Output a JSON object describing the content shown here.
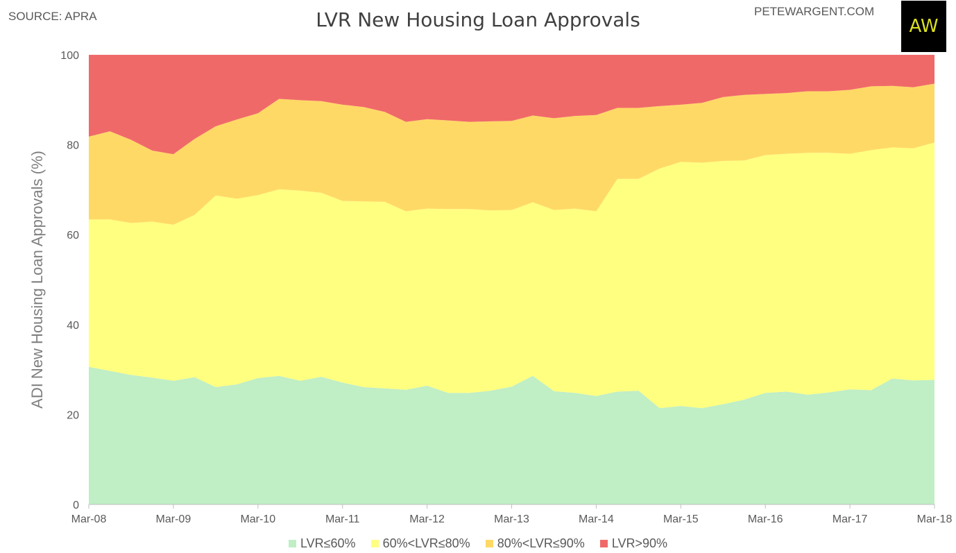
{
  "header": {
    "source": "SOURCE: APRA",
    "title": "LVR New Housing Loan Approvals",
    "site": "PETEWARGENT.COM",
    "logo_text": "AW"
  },
  "chart_data": {
    "type": "area",
    "stacked": true,
    "title": "LVR New Housing Loan Approvals",
    "ylabel": "ADI New Housing Loan Approvals (%)",
    "xlabel": "",
    "ylim": [
      0,
      100
    ],
    "yticks": [
      0,
      20,
      40,
      60,
      80,
      100
    ],
    "x_tick_labels": [
      "Mar-08",
      "Mar-09",
      "Mar-10",
      "Mar-11",
      "Mar-12",
      "Mar-13",
      "Mar-14",
      "Mar-15",
      "Mar-16",
      "Mar-17",
      "Mar-18"
    ],
    "x_points_per_tick": 4,
    "legend_position": "bottom",
    "series": [
      {
        "name": "LVR≤60%",
        "color": "#c0eec5",
        "values": [
          30.6,
          29.7,
          28.8,
          28.2,
          27.5,
          28.3,
          26.1,
          26.7,
          28.1,
          28.6,
          27.5,
          28.4,
          27.1,
          26.1,
          25.8,
          25.5,
          26.4,
          24.8,
          24.8,
          25.3,
          26.2,
          28.6,
          25.2,
          24.8,
          24.1,
          25.1,
          25.3,
          21.4,
          21.9,
          21.4,
          22.3,
          23.3,
          24.8,
          25.1,
          24.4,
          24.9,
          25.6,
          25.4,
          28.0,
          27.6,
          27.7
        ]
      },
      {
        "name": "60%<LVR≤80%",
        "color": "#ffff80",
        "values": [
          32.8,
          33.7,
          33.8,
          34.7,
          34.7,
          36.1,
          42.6,
          41.3,
          40.7,
          41.5,
          42.3,
          40.9,
          40.4,
          41.3,
          41.5,
          39.7,
          39.4,
          40.9,
          40.9,
          40.1,
          39.3,
          38.6,
          40.3,
          41.0,
          41.1,
          47.3,
          47.1,
          53.3,
          54.3,
          54.6,
          54.1,
          53.2,
          52.9,
          52.9,
          53.8,
          53.3,
          52.4,
          53.4,
          51.4,
          51.6,
          52.8
        ]
      },
      {
        "name": "80%<LVR≤90%",
        "color": "#ffd966",
        "values": [
          18.4,
          19.6,
          18.5,
          15.8,
          15.7,
          16.9,
          15.4,
          17.6,
          18.2,
          20.1,
          20.1,
          20.4,
          21.4,
          21.0,
          20.0,
          19.9,
          19.9,
          19.7,
          19.4,
          19.8,
          19.8,
          19.3,
          20.4,
          20.6,
          21.4,
          15.8,
          15.8,
          13.9,
          12.7,
          13.3,
          14.2,
          14.6,
          13.6,
          13.5,
          13.7,
          13.7,
          14.2,
          14.2,
          13.7,
          13.6,
          13.1
        ]
      },
      {
        "name": "LVR>90%",
        "color": "#f06969",
        "values": [
          18.2,
          17.0,
          18.9,
          21.3,
          22.1,
          18.7,
          15.9,
          14.4,
          13.0,
          9.8,
          10.1,
          10.3,
          11.1,
          11.6,
          12.7,
          14.9,
          14.3,
          14.6,
          14.9,
          14.8,
          14.7,
          13.5,
          14.1,
          13.6,
          13.4,
          11.8,
          11.8,
          11.4,
          11.1,
          10.7,
          9.4,
          8.9,
          8.7,
          8.5,
          8.1,
          8.1,
          7.8,
          7.0,
          6.9,
          7.2,
          6.4
        ]
      }
    ]
  }
}
